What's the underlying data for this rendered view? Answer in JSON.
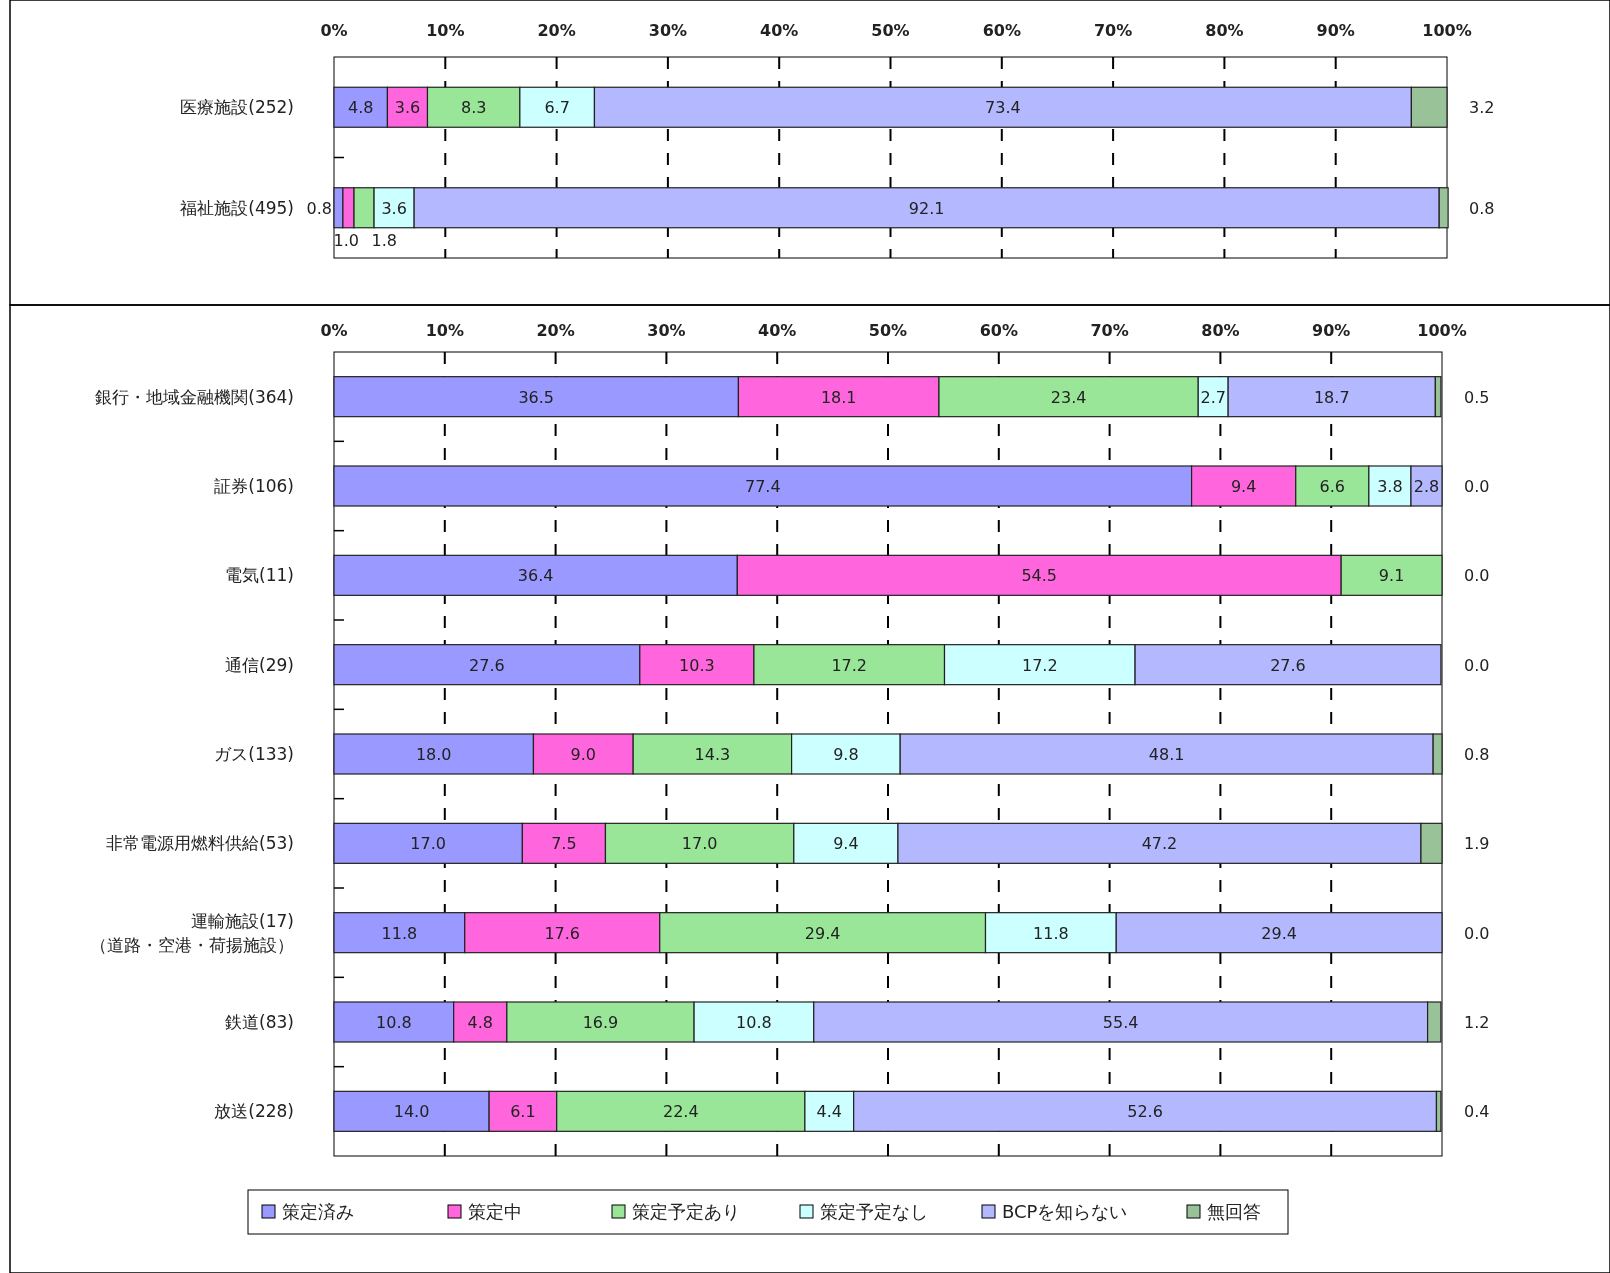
{
  "chart_data": [
    {
      "type": "bar",
      "orientation": "horizontal",
      "stacked": true,
      "grid": "x",
      "categories": [
        "医療施設(252)",
        "福祉施設(495)"
      ],
      "xlim": [
        0,
        100
      ],
      "xticks": [
        {
          "value": 0,
          "label": "0%"
        },
        {
          "value": 10,
          "label": "10%"
        },
        {
          "value": 20,
          "label": "20%"
        },
        {
          "value": 30,
          "label": "30%"
        },
        {
          "value": 40,
          "label": "40%"
        },
        {
          "value": 50,
          "label": "50%"
        },
        {
          "value": 60,
          "label": "60%"
        },
        {
          "value": 70,
          "label": "70%"
        },
        {
          "value": 80,
          "label": "80%"
        },
        {
          "value": 90,
          "label": "90%"
        },
        {
          "value": 100,
          "label": "100%"
        }
      ],
      "series": [
        {
          "color": "#9999ff",
          "values": [
            4.8,
            0.8
          ],
          "value_labels": [
            "4.8",
            "0.8"
          ]
        },
        {
          "color": "#ff66dd",
          "values": [
            3.6,
            1.0
          ],
          "value_labels": [
            "3.6",
            "1.0"
          ]
        },
        {
          "color": "#99e699",
          "values": [
            8.3,
            1.8
          ],
          "value_labels": [
            "8.3",
            "1.8"
          ]
        },
        {
          "color": "#ccffff",
          "values": [
            6.7,
            3.6
          ],
          "value_labels": [
            "6.7",
            "3.6"
          ]
        },
        {
          "color": "#b3b8ff",
          "values": [
            73.4,
            92.1
          ],
          "value_labels": [
            "73.4",
            "92.1"
          ]
        },
        {
          "color": "#99c299",
          "values": [
            3.2,
            0.8
          ],
          "value_labels": [
            "3.2",
            "0.8"
          ]
        }
      ]
    },
    {
      "type": "bar",
      "orientation": "horizontal",
      "stacked": true,
      "grid": "x",
      "legend": "bottom",
      "categories": [
        "銀行・地域金融機関(364)",
        "証券(106)",
        "電気(11)",
        "通信(29)",
        "ガス(133)",
        "非常電源用燃料供給(53)",
        "運輸施設(17)\n（道路・空港・荷揚施設）",
        "鉄道(83)",
        "放送(228)"
      ],
      "xlim": [
        0,
        100
      ],
      "xticks": [
        {
          "value": 0,
          "label": "0%"
        },
        {
          "value": 10,
          "label": "10%"
        },
        {
          "value": 20,
          "label": "20%"
        },
        {
          "value": 30,
          "label": "30%"
        },
        {
          "value": 40,
          "label": "40%"
        },
        {
          "value": 50,
          "label": "50%"
        },
        {
          "value": 60,
          "label": "60%"
        },
        {
          "value": 70,
          "label": "70%"
        },
        {
          "value": 80,
          "label": "80%"
        },
        {
          "value": 90,
          "label": "90%"
        },
        {
          "value": 100,
          "label": "100%"
        }
      ],
      "series": [
        {
          "name": "策定済み",
          "color": "#9999ff",
          "values": [
            36.5,
            77.4,
            36.4,
            27.6,
            18.0,
            17.0,
            11.8,
            10.8,
            14.0
          ],
          "value_labels": [
            "36.5",
            "77.4",
            "36.4",
            "27.6",
            "18.0",
            "17.0",
            "11.8",
            "10.8",
            "14.0"
          ]
        },
        {
          "name": "策定中",
          "color": "#ff66dd",
          "values": [
            18.1,
            9.4,
            54.5,
            10.3,
            9.0,
            7.5,
            17.6,
            4.8,
            6.1
          ],
          "value_labels": [
            "18.1",
            "9.4",
            "54.5",
            "10.3",
            "9.0",
            "7.5",
            "17.6",
            "4.8",
            "6.1"
          ]
        },
        {
          "name": "策定予定あり",
          "color": "#99e699",
          "values": [
            23.4,
            6.6,
            9.1,
            17.2,
            14.3,
            17.0,
            29.4,
            16.9,
            22.4
          ],
          "value_labels": [
            "23.4",
            "6.6",
            "9.1",
            "17.2",
            "14.3",
            "17.0",
            "29.4",
            "16.9",
            "22.4"
          ]
        },
        {
          "name": "策定予定なし",
          "color": "#ccffff",
          "values": [
            2.7,
            3.8,
            0.0,
            17.2,
            9.8,
            9.4,
            11.8,
            10.8,
            4.4
          ],
          "value_labels": [
            "2.7",
            "3.8",
            null,
            "17.2",
            "9.8",
            "9.4",
            "11.8",
            "10.8",
            "4.4"
          ]
        },
        {
          "name": "BCPを知らない",
          "color": "#b3b8ff",
          "values": [
            18.7,
            2.8,
            0.0,
            27.6,
            48.1,
            47.2,
            29.4,
            55.4,
            52.6
          ],
          "value_labels": [
            "18.7",
            "2.8",
            null,
            "27.6",
            "48.1",
            "47.2",
            "29.4",
            "55.4",
            "52.6"
          ]
        },
        {
          "name": "無回答",
          "color": "#99c299",
          "values": [
            0.5,
            0.0,
            0.0,
            0.0,
            0.8,
            1.9,
            0.0,
            1.2,
            0.4
          ],
          "value_labels": [
            "0.5",
            "0.0",
            "0.0",
            "0.0",
            "0.8",
            "1.9",
            "0.0",
            "1.2",
            "0.4"
          ]
        }
      ]
    }
  ]
}
